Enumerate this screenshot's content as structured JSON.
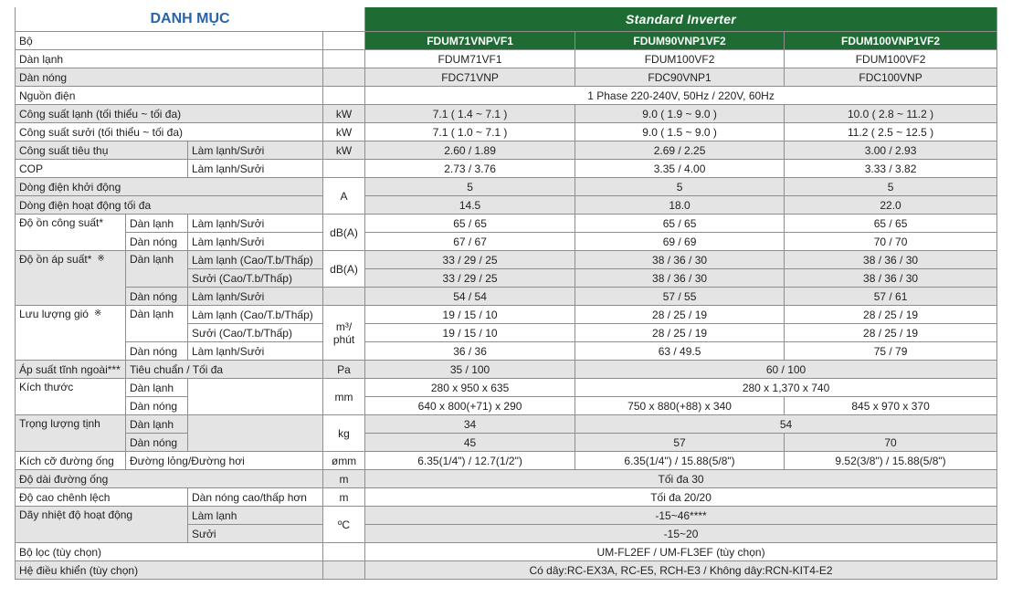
{
  "header": {
    "title": "DANH MỤC",
    "series": "Standard Inverter",
    "models": [
      "FDUM71VNPVF1",
      "FDUM90VNP1VF2",
      "FDUM100VNP1VF2"
    ]
  },
  "colors": {
    "accent_green": "#1e6b34",
    "title_blue": "#2a63a8",
    "row_gray": "#e4e4e4"
  },
  "rows": {
    "bo": {
      "label": "Bộ"
    },
    "indoor": {
      "label": "Dàn lạnh",
      "values": [
        "FDUM71VF1",
        "FDUM100VF2",
        "FDUM100VF2"
      ]
    },
    "outdoor": {
      "label": "Dàn nóng",
      "values": [
        "FDC71VNP",
        "FDC90VNP1",
        "FDC100VNP"
      ]
    },
    "power": {
      "label": "Nguồn điện",
      "value": "1 Phase 220-240V, 50Hz / 220V, 60Hz"
    },
    "cool_cap": {
      "label": "Công suất lạnh (tối thiểu ~ tối đa)",
      "unit": "kW",
      "values": [
        "7.1 ( 1.4 ~ 7.1 )",
        "9.0 ( 1.9 ~ 9.0 )",
        "10.0 ( 2.8 ~ 11.2 )"
      ]
    },
    "heat_cap": {
      "label": "Công suất sưởi (tối thiểu ~ tối đa)",
      "unit": "kW",
      "values": [
        "7.1 ( 1.0 ~ 7.1 )",
        "9.0 ( 1.5 ~ 9.0 )",
        "11.2 ( 2.5 ~ 12.5 )"
      ]
    },
    "consumption": {
      "label": "Công suất tiêu thụ",
      "sub": "Làm lạnh/Sưởi",
      "unit": "kW",
      "values": [
        "2.60 / 1.89",
        "2.69 / 2.25",
        "3.00 / 2.93"
      ]
    },
    "cop": {
      "label": "COP",
      "sub": "Làm lạnh/Sưởi",
      "values": [
        "2.73 / 3.76",
        "3.35 / 4.00",
        "3.33 / 3.82"
      ]
    },
    "start_current": {
      "label": "Dòng điện khởi động",
      "unit": "A",
      "values": [
        "5",
        "5",
        "5"
      ]
    },
    "max_current": {
      "label": "Dòng điện hoạt động tối đa",
      "values": [
        "14.5",
        "18.0",
        "22.0"
      ]
    },
    "power_noise": {
      "label": "Độ ồn công suất*",
      "unit": "dB(A)",
      "indoor": {
        "label": "Dàn lạnh",
        "sub": "Làm lạnh/Sưởi",
        "values": [
          "65 / 65",
          "65 / 65",
          "65 / 65"
        ]
      },
      "outdoor": {
        "label": "Dàn nóng",
        "sub": "Làm lạnh/Sưởi",
        "values": [
          "67 / 67",
          "69 / 69",
          "70 / 70"
        ]
      }
    },
    "pressure_noise": {
      "label": "Độ ồn áp suất*",
      "mark": "※",
      "unit": "dB(A)",
      "indoor": {
        "label": "Dàn lạnh",
        "cool": {
          "sub": "Làm lạnh (Cao/T.b/Thấp)",
          "values": [
            "33 / 29 / 25",
            "38 / 36 / 30",
            "38 / 36 / 30"
          ]
        },
        "heat": {
          "sub": "Sưởi (Cao/T.b/Thấp)",
          "values": [
            "33 / 29 / 25",
            "38 / 36 / 30",
            "38 / 36 / 30"
          ]
        }
      },
      "outdoor": {
        "label": "Dàn nóng",
        "sub": "Làm lạnh/Sưởi",
        "values": [
          "54 / 54",
          "57 / 55",
          "57 / 61"
        ]
      }
    },
    "airflow": {
      "label": "Lưu lượng gió",
      "mark": "※",
      "unit_top": "m³/",
      "unit_bottom": "phút",
      "indoor": {
        "label": "Dàn lạnh",
        "cool": {
          "sub": "Làm lạnh (Cao/T.b/Thấp)",
          "values": [
            "19 / 15 / 10",
            "28 / 25 / 19",
            "28 / 25 / 19"
          ]
        },
        "heat": {
          "sub": "Sưởi (Cao/T.b/Thấp)",
          "values": [
            "19 / 15 / 10",
            "28 / 25 / 19",
            "28 / 25 / 19"
          ]
        }
      },
      "outdoor": {
        "label": "Dàn nóng",
        "sub": "Làm lạnh/Sưởi",
        "values": [
          "36 / 36",
          "63 / 49.5",
          "75 / 79"
        ]
      }
    },
    "static_pressure": {
      "label": "Áp suất tĩnh ngoài***",
      "sub": "Tiêu chuẩn / Tối đa",
      "unit": "Pa",
      "values": [
        "35 / 100",
        "60 / 100"
      ]
    },
    "dimensions": {
      "label": "Kích thước",
      "unit": "mm",
      "indoor": {
        "label": "Dàn lạnh",
        "values": [
          "280 x 950 x 635",
          "280 x 1,370 x 740"
        ]
      },
      "outdoor": {
        "label": "Dàn nóng",
        "values": [
          "640 x 800(+71) x 290",
          "750 x 880(+88) x 340",
          "845 x 970 x 370"
        ]
      }
    },
    "weight": {
      "label": "Trọng lượng tịnh",
      "unit": "kg",
      "indoor": {
        "label": "Dàn lạnh",
        "values": [
          "34",
          "54"
        ]
      },
      "outdoor": {
        "label": "Dàn nóng",
        "values": [
          "45",
          "57",
          "70"
        ]
      }
    },
    "pipe": {
      "label": "Kích cỡ đường ống",
      "sub": "Đường lỏng/Đường hơi",
      "unit": "ømm",
      "values": [
        "6.35(1/4\") / 12.7(1/2\")",
        "6.35(1/4\") / 15.88(5/8\")",
        "9.52(3/8\") / 15.88(5/8\")"
      ]
    },
    "pipe_length": {
      "label": "Độ dài đường ống",
      "unit": "m",
      "value": "Tối đa 30"
    },
    "height_diff": {
      "label": "Độ cao chênh lệch",
      "sub": "Dàn nóng cao/thấp hơn",
      "unit": "m",
      "value": "Tối đa 20/20"
    },
    "temp_range": {
      "label": "Dãy nhiệt độ hoạt động",
      "unit": "ºC",
      "cool": {
        "sub": "Làm lạnh",
        "value": "-15~46****"
      },
      "heat": {
        "sub": "Sưởi",
        "value": "-15~20"
      }
    },
    "filter": {
      "label": "Bộ lọc (tùy chọn)",
      "value": "UM-FL2EF / UM-FL3EF (tùy chọn)"
    },
    "remote": {
      "label": "Hệ điều khiển (tùy chọn)",
      "value": "Có dây:RC-EX3A, RC-E5, RCH-E3  /  Không dây:RCN-KIT4-E2"
    }
  }
}
